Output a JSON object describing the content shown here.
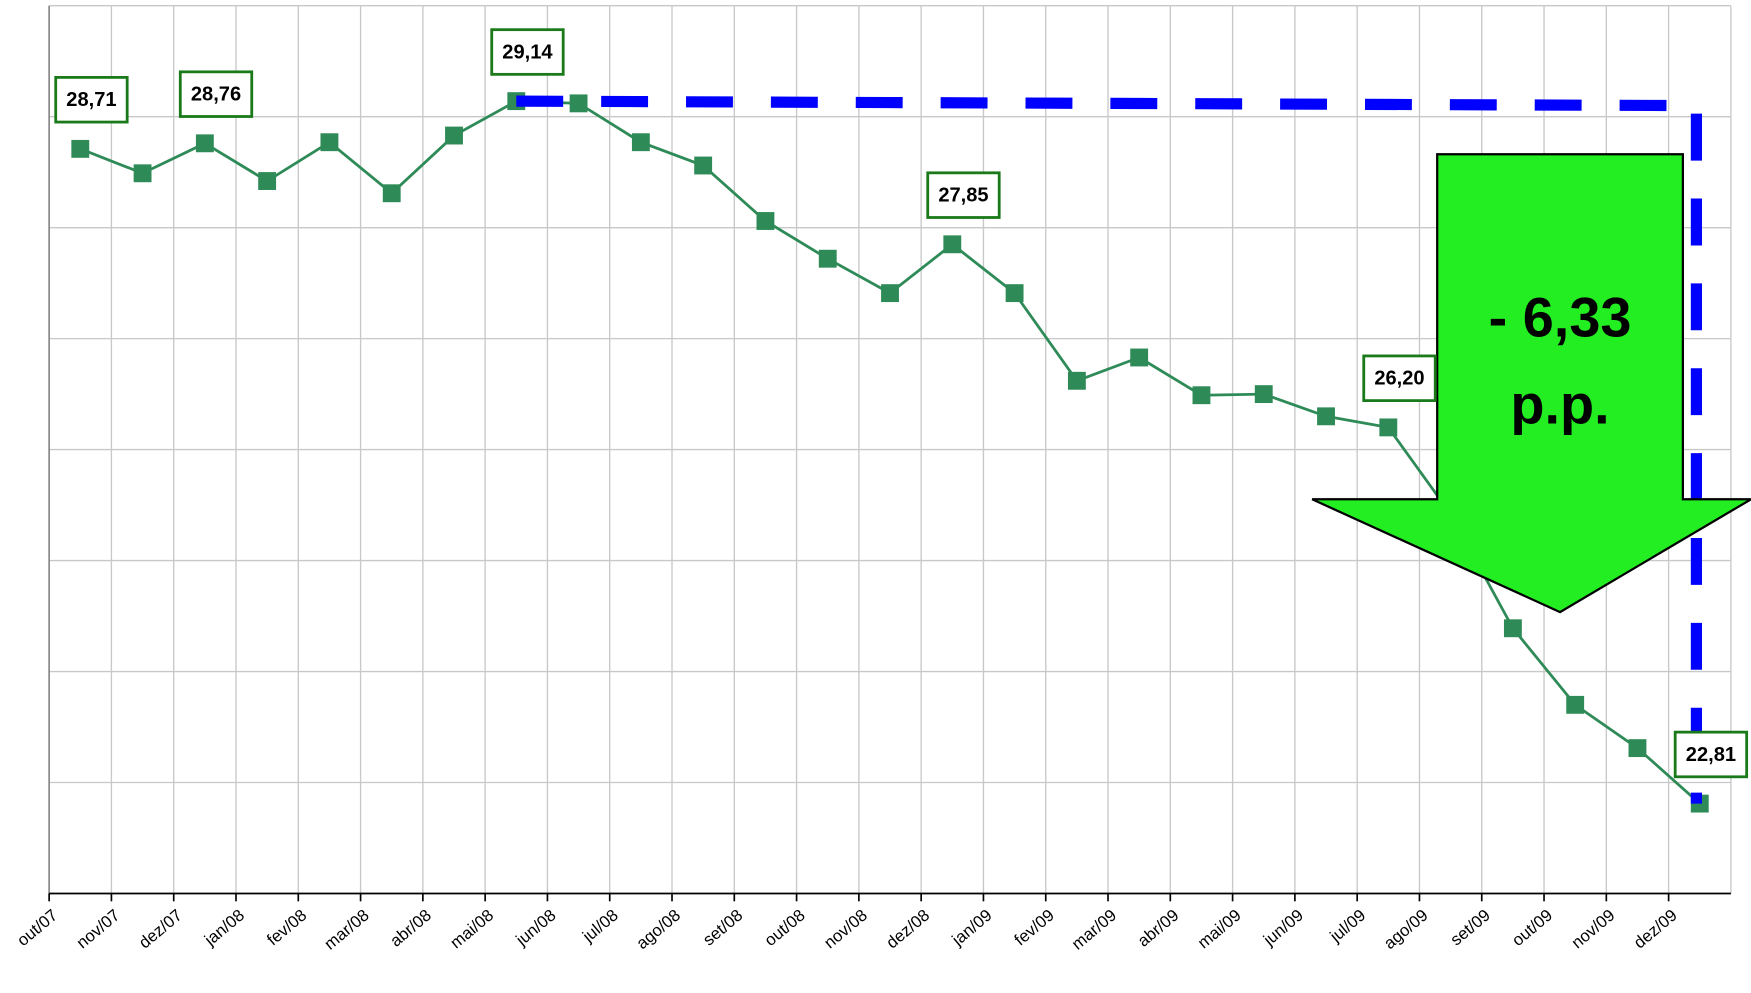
{
  "chart_data": {
    "type": "line",
    "categories": [
      "out/07",
      "nov/07",
      "dez/07",
      "jan/08",
      "fev/08",
      "mar/08",
      "abr/08",
      "mai/08",
      "jun/08",
      "jul/08",
      "ago/08",
      "set/08",
      "out/08",
      "nov/08",
      "dez/08",
      "jan/09",
      "fev/09",
      "mar/09",
      "abr/09",
      "mai/09",
      "jun/09",
      "jul/09",
      "ago/09",
      "set/09",
      "out/09",
      "nov/09",
      "dez/09"
    ],
    "series": [
      {
        "color": "#2e8b57",
        "values": [
          28.71,
          28.49,
          28.76,
          28.42,
          28.77,
          28.31,
          28.83,
          29.14,
          29.12,
          28.77,
          28.56,
          28.06,
          27.72,
          27.41,
          27.85,
          27.41,
          26.62,
          26.83,
          26.49,
          26.5,
          26.3,
          26.2,
          25.42,
          24.39,
          23.7,
          23.31,
          22.81
        ],
        "value_labels": [
          "28,71",
          null,
          "28,76",
          null,
          null,
          null,
          null,
          "29,14",
          null,
          null,
          null,
          null,
          null,
          null,
          "27,85",
          null,
          null,
          null,
          null,
          null,
          null,
          "26,20",
          null,
          null,
          null,
          null,
          "22,81"
        ]
      }
    ],
    "ylim": [
      22,
      30
    ],
    "yticks": [
      22,
      23,
      24,
      25,
      26,
      27,
      28,
      29,
      30
    ],
    "grid": true,
    "annotation": [
      "- 6,33",
      "p.p."
    ]
  }
}
